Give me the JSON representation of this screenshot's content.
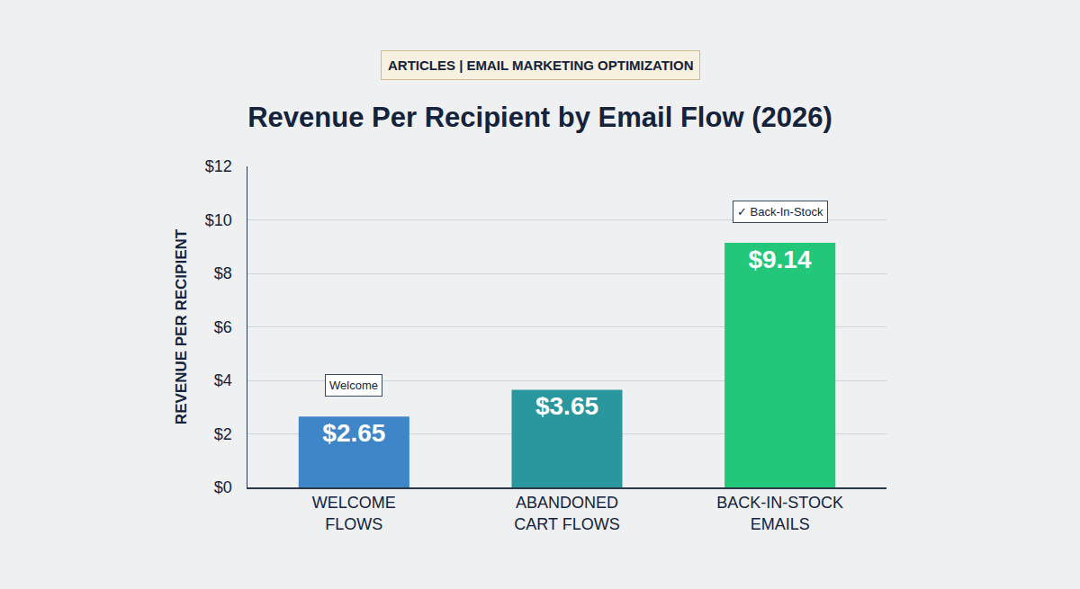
{
  "chart_data": {
    "type": "bar",
    "title": "Revenue Per Recipient by Email Flow (2026)",
    "subtitle": "ARTICLES | EMAIL MARKETING OPTIMIZATION",
    "y_label": "REVENUE PER RECIPIENT",
    "categories": [
      "WELCOME FLOWS",
      "ABANDONED CART FLOWS",
      "BACK-IN-STOCK EMAILS"
    ],
    "values": [
      2.65,
      3.65,
      9.14
    ],
    "value_labels": [
      "$2.65",
      "$3.65",
      "$9.14"
    ],
    "colors": [
      "#3f86c9",
      "#2a979e",
      "#22c77a"
    ],
    "ylim": [
      0,
      12
    ],
    "yticks": [
      {
        "value": 0,
        "label": "$0"
      },
      {
        "value": 2,
        "label": "$2"
      },
      {
        "value": 4,
        "label": "$4"
      },
      {
        "value": 6,
        "label": "$6"
      },
      {
        "value": 8,
        "label": "$8"
      },
      {
        "value": 10,
        "label": "$10"
      },
      {
        "value": 12,
        "label": "$12"
      }
    ],
    "grid": true,
    "data_labels": true,
    "annotations": [
      {
        "category": "WELCOME FLOWS",
        "text": "Welcome"
      },
      {
        "category": "BACK-IN-STOCK EMAILS",
        "text": "✓ Back-In-Stock"
      }
    ]
  }
}
